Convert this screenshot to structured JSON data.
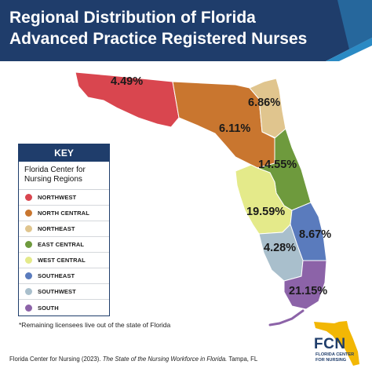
{
  "header": {
    "title_line1": "Regional Distribution of Florida",
    "title_line2": "Advanced Practice Registered Nurses"
  },
  "colors": {
    "banner": "#1f3d6b",
    "banner_accent": "#2b8ac4",
    "northwest": "#d9464f",
    "north_central": "#c9762f",
    "northeast": "#e0c58e",
    "east_central": "#6e9a3d",
    "west_central": "#e4ea8a",
    "southeast": "#5a7bbd",
    "southwest": "#a9bfcc",
    "south": "#8c63a8"
  },
  "regions": [
    {
      "id": "northwest",
      "percent": "4.49%"
    },
    {
      "id": "north_central",
      "percent": "6.11%"
    },
    {
      "id": "northeast",
      "percent": "6.86%"
    },
    {
      "id": "east_central",
      "percent": "14.55%"
    },
    {
      "id": "west_central",
      "percent": "19.59%"
    },
    {
      "id": "southeast",
      "percent": "8.67%"
    },
    {
      "id": "southwest",
      "percent": "4.28%"
    },
    {
      "id": "south",
      "percent": "21.15%"
    }
  ],
  "key": {
    "heading": "KEY",
    "subheading": "Florida Center for Nursing Regions",
    "items": [
      {
        "label": "NORTHWEST",
        "color": "#d9464f"
      },
      {
        "label": "NORTH CENTRAL",
        "color": "#c9762f"
      },
      {
        "label": "NORTHEAST",
        "color": "#e0c58e"
      },
      {
        "label": "EAST CENTRAL",
        "color": "#6e9a3d"
      },
      {
        "label": "WEST CENTRAL",
        "color": "#e4ea8a"
      },
      {
        "label": "SOUTHEAST",
        "color": "#5a7bbd"
      },
      {
        "label": "SOUTHWEST",
        "color": "#a9bfcc"
      },
      {
        "label": "SOUTH",
        "color": "#8c63a8"
      }
    ]
  },
  "footnote": "*Remaining licensees live out of the state of Florida",
  "citation": {
    "prefix": "Florida Center for Nursing (2023). ",
    "italic": "The State of the Nursing Workforce in Florida.",
    "suffix": " Tampa, FL"
  },
  "logo": {
    "abbrev": "FCN",
    "name_line1": "FLORIDA CENTER",
    "name_line2": "FOR NURSING"
  }
}
